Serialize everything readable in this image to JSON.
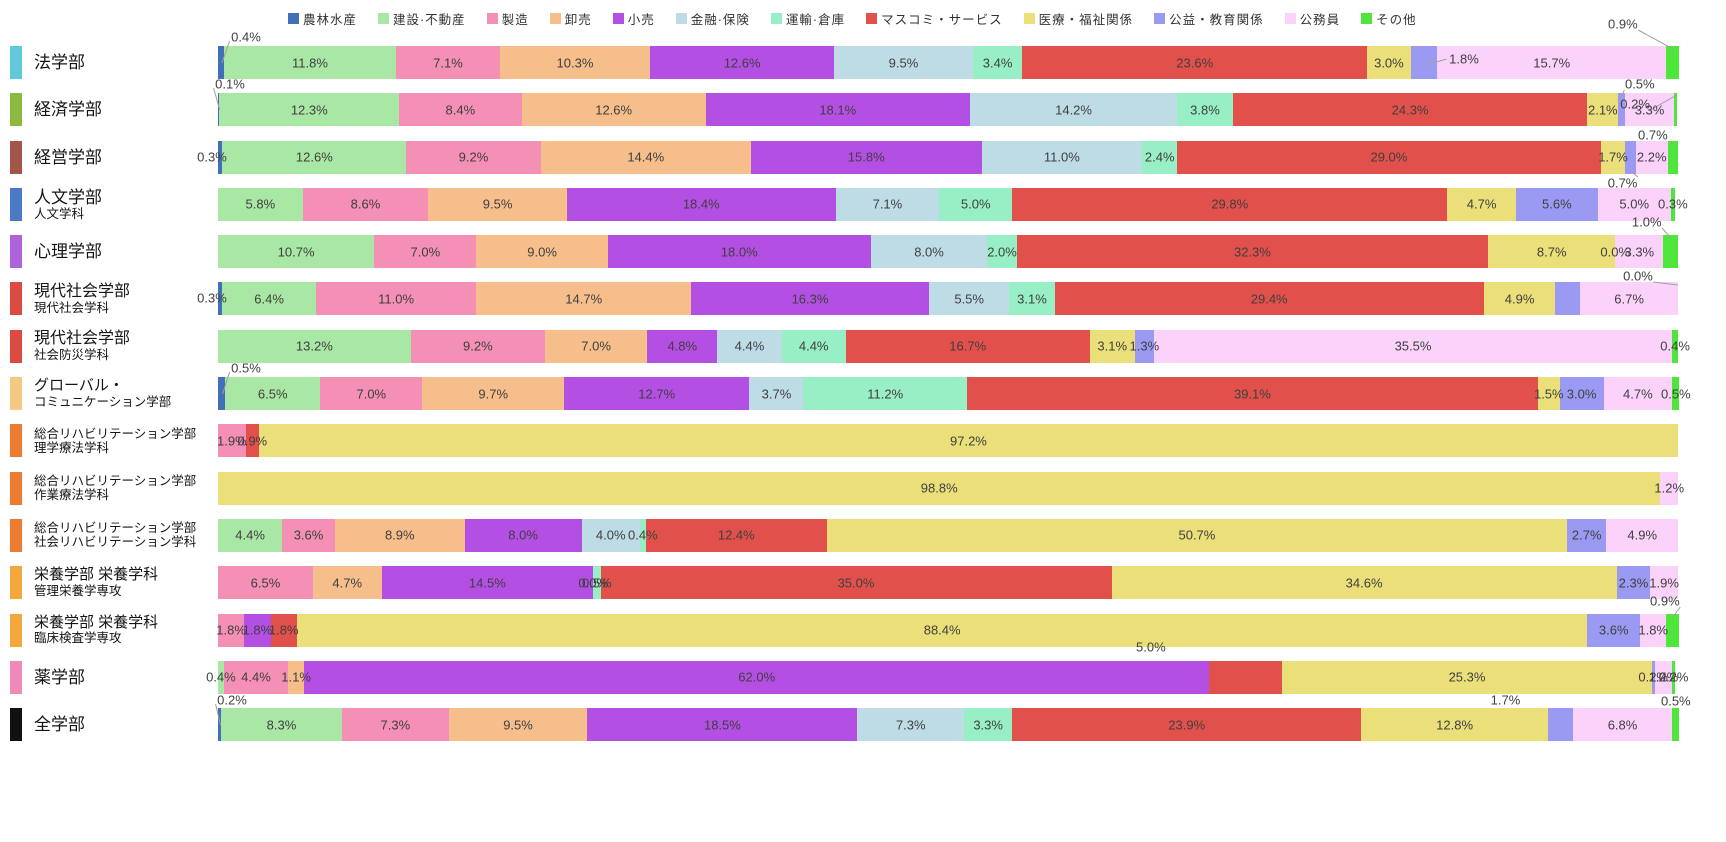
{
  "chart_data": {
    "type": "bar",
    "subtype": "horizontal-stacked-percent",
    "unit": "%",
    "axis": {
      "min": 0,
      "max": 100,
      "ticks_visible": false,
      "grid": false
    },
    "legend_position": "top",
    "categories": [
      "農林水産",
      "建設·不動産",
      "製造",
      "卸売",
      "小売",
      "金融·保険",
      "運輸·倉庫",
      "マスコミ・サービス",
      "医療・福祉関係",
      "公益・教育関係",
      "公務員",
      "その他"
    ],
    "colors": [
      "#4170B8",
      "#A9E7A4",
      "#F48FB5",
      "#F6BE8B",
      "#B44FE3",
      "#BEDCE6",
      "#98EFC5",
      "#E2504B",
      "#EADF79",
      "#9B9AF3",
      "#FBD2FA",
      "#4EE63A"
    ],
    "label_color": "#3f3f3f",
    "leader_color": "#a0a0a0",
    "rows": [
      {
        "name": "法学部",
        "name2": "",
        "fs": 17,
        "swatch": "#5FC9DB",
        "values": [
          0.4,
          11.8,
          7.1,
          10.3,
          12.6,
          9.5,
          3.4,
          23.6,
          3.0,
          1.8,
          15.7,
          0.9
        ],
        "callouts": [
          [
            0,
            "L",
            28,
            -9,
            1
          ],
          [
            9,
            "N",
            40,
            13,
            1
          ],
          [
            11,
            "A",
            -50,
            -22,
            1
          ]
        ]
      },
      {
        "name": "経済学部",
        "name2": "",
        "fs": 17,
        "swatch": "#8CB93F",
        "values": [
          0.1,
          12.3,
          8.4,
          12.6,
          18.1,
          14.2,
          3.8,
          24.3,
          2.1,
          0.5,
          3.3,
          0.2
        ],
        "callouts": [
          [
            0,
            "L",
            12,
            -9,
            1
          ],
          [
            9,
            "A",
            18,
            -9,
            1
          ],
          [
            11,
            "A",
            -40,
            11,
            1
          ]
        ]
      },
      {
        "name": "経営学部",
        "name2": "",
        "fs": 17,
        "swatch": "#A3554A",
        "values": [
          0.3,
          12.6,
          9.2,
          14.4,
          15.8,
          11.0,
          2.4,
          29.0,
          1.7,
          0.7,
          2.2,
          0.7
        ],
        "callouts": [
          [
            0,
            "L",
            -6,
            16,
            0
          ],
          [
            9,
            "B",
            -8,
            42,
            1
          ],
          [
            11,
            "A",
            -20,
            -6,
            1
          ]
        ]
      },
      {
        "name": "人文学部",
        "name2": "人文学科",
        "fs": 17,
        "swatch": "#4B79C4",
        "values": [
          0,
          5.8,
          8.6,
          9.5,
          18.4,
          7.1,
          5.0,
          29.8,
          4.7,
          5.6,
          5.0,
          0.3
        ],
        "callouts": []
      },
      {
        "name": "心理学部",
        "name2": "",
        "fs": 17,
        "swatch": "#AF63DB",
        "values": [
          0,
          10.7,
          7.0,
          9.0,
          18.0,
          8.0,
          2.0,
          32.3,
          8.7,
          0.0,
          3.3,
          1.0
        ],
        "show_zero": [
          9
        ],
        "callouts": [
          [
            11,
            "A",
            -24,
            -13,
            1
          ]
        ]
      },
      {
        "name": "現代社会学部",
        "name2": "現代社会学科",
        "fs": 16,
        "swatch": "#DC4B42",
        "values": [
          0.3,
          6.4,
          11.0,
          14.7,
          16.3,
          5.5,
          3.1,
          29.4,
          4.9,
          1.7,
          6.7,
          0.0
        ],
        "hide": [
          9
        ],
        "callouts": [
          [
            0,
            "L",
            -6,
            16,
            0
          ],
          [
            11,
            "A",
            -40,
            -6,
            1
          ]
        ]
      },
      {
        "name": "現代社会学部",
        "name2": "社会防災学科",
        "fs": 16,
        "swatch": "#DC4B42",
        "values": [
          0,
          13.2,
          9.2,
          7.0,
          4.8,
          4.4,
          4.4,
          16.7,
          3.1,
          1.3,
          35.5,
          0.4
        ],
        "callouts": []
      },
      {
        "name": "グローバル・",
        "name2": "コミュニケーション学部",
        "fs": 15,
        "swatch": "#F4C981",
        "values": [
          0.5,
          6.5,
          7.0,
          9.7,
          12.7,
          3.7,
          11.2,
          39.1,
          1.5,
          3.0,
          4.7,
          0.5
        ],
        "callouts": [
          [
            0,
            "L",
            28,
            -9,
            1
          ]
        ]
      },
      {
        "name": "総合リハビリテーション学部",
        "name2": "理学療法学科",
        "fs": 12.5,
        "swatch": "#EC7C2F",
        "values": [
          0,
          0,
          1.9,
          0,
          0,
          0,
          0,
          0.9,
          97.2,
          0,
          0,
          0
        ],
        "callouts": []
      },
      {
        "name": "総合リハビリテーション学部",
        "name2": "作業療法学科",
        "fs": 12.5,
        "swatch": "#EC7C2F",
        "values": [
          0,
          0,
          0,
          0,
          0,
          0,
          0,
          0,
          98.8,
          0,
          1.2,
          0
        ],
        "callouts": []
      },
      {
        "name": "総合リハビリテーション学部",
        "name2": "社会リハビリテーション学科",
        "fs": 12.5,
        "swatch": "#EC7C2F",
        "values": [
          0,
          4.4,
          3.6,
          8.9,
          8.0,
          4.0,
          0.4,
          12.4,
          50.7,
          2.7,
          4.9,
          0
        ],
        "callouts": []
      },
      {
        "name": "栄養学部 栄養学科",
        "name2": "管理栄養学専攻",
        "fs": 15,
        "swatch": "#F5A73B",
        "values": [
          0,
          0,
          6.5,
          4.7,
          14.5,
          0.0,
          0.5,
          35.0,
          34.6,
          2.3,
          1.9,
          0
        ],
        "show_zero": [
          5
        ],
        "callouts": []
      },
      {
        "name": "栄養学部 栄養学科",
        "name2": "臨床検査学専攻",
        "fs": 15,
        "swatch": "#F5A73B",
        "values": [
          0,
          0,
          1.8,
          0,
          1.8,
          0,
          0,
          1.8,
          88.4,
          3.6,
          1.8,
          0.9
        ],
        "callouts": [
          [
            11,
            "A",
            -8,
            -13,
            1
          ]
        ]
      },
      {
        "name": "薬学部",
        "name2": "",
        "fs": 17,
        "swatch": "#F08BB7",
        "values": [
          0,
          0.4,
          4.4,
          1.1,
          62.0,
          0,
          0,
          5.0,
          25.3,
          0.2,
          1.2,
          0.2
        ],
        "callouts": [
          [
            7,
            "A",
            -95,
            -14,
            0
          ]
        ]
      },
      {
        "name": "全学部",
        "name2": "",
        "fs": 17,
        "swatch": "#111111",
        "values": [
          0.2,
          8.3,
          7.3,
          9.5,
          18.5,
          7.3,
          3.3,
          23.9,
          12.8,
          1.7,
          6.8,
          0.5
        ],
        "callouts": [
          [
            0,
            "L",
            14,
            -8,
            1
          ],
          [
            9,
            "A",
            -55,
            -8,
            0
          ],
          [
            11,
            "A",
            0,
            -7,
            0
          ]
        ]
      }
    ]
  }
}
